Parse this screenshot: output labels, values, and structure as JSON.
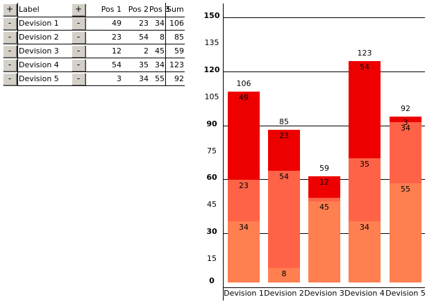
{
  "table": {
    "add_row_button": "+",
    "add_column_button": "+",
    "remove_button": "-",
    "headers": {
      "label": "Label",
      "pos1": "Pos 1",
      "pos2": "Pos 2",
      "pos3": "Pos 3",
      "sum": "Sum"
    },
    "rows": [
      {
        "label": "Devision 1",
        "pos1": "49",
        "pos2": "23",
        "pos3": "34",
        "sum": "106"
      },
      {
        "label": "Devision 2",
        "pos1": "23",
        "pos2": "54",
        "pos3": "8",
        "sum": "85"
      },
      {
        "label": "Devision 3",
        "pos1": "12",
        "pos2": "2",
        "pos3": "45",
        "sum": "59"
      },
      {
        "label": "Devision 4",
        "pos1": "54",
        "pos2": "35",
        "pos3": "34",
        "sum": "123"
      },
      {
        "label": "Devision 5",
        "pos1": "3",
        "pos2": "34",
        "pos3": "55",
        "sum": "92"
      }
    ]
  },
  "chart_data": {
    "type": "bar",
    "stacked": true,
    "title": "",
    "xlabel": "",
    "ylabel": "",
    "ylim": [
      0,
      150
    ],
    "yticks": [
      0,
      15,
      30,
      45,
      60,
      75,
      90,
      105,
      120,
      135,
      150
    ],
    "ytick_labels": [
      "0",
      "15",
      "30",
      "45",
      "60",
      "75",
      "90",
      "105",
      "120",
      "135",
      "150"
    ],
    "major_ticks": [
      0,
      30,
      60,
      90,
      120,
      150
    ],
    "grid": true,
    "legend": false,
    "categories": [
      "Devision 1",
      "Devision 2",
      "Devision 3",
      "Devision 4",
      "Devision 5"
    ],
    "series": [
      {
        "name": "Pos 3",
        "values": [
          34,
          8,
          45,
          34,
          55
        ],
        "color": "#FF7F50"
      },
      {
        "name": "Pos 2",
        "values": [
          23,
          54,
          2,
          35,
          34
        ],
        "color": "#FF6347"
      },
      {
        "name": "Pos 1",
        "values": [
          49,
          23,
          12,
          54,
          3
        ],
        "color": "#EE0000"
      }
    ],
    "totals": [
      106,
      85,
      59,
      123,
      92
    ],
    "total_labels": [
      "106",
      "85",
      "59",
      "123",
      "92"
    ]
  }
}
